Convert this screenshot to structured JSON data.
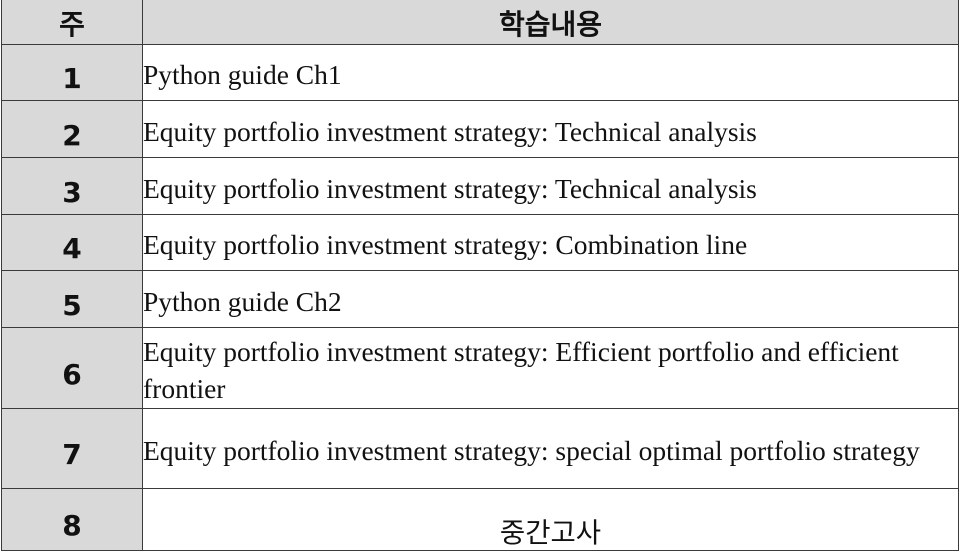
{
  "table": {
    "header": {
      "week": "주",
      "content": "학습내용"
    },
    "rows": [
      {
        "week": "1",
        "content": "Python guide Ch1"
      },
      {
        "week": "2",
        "content": "Equity portfolio investment strategy: Technical analysis"
      },
      {
        "week": "3",
        "content": "Equity portfolio investment strategy: Technical analysis"
      },
      {
        "week": "4",
        "content": "Equity portfolio investment strategy: Combination line"
      },
      {
        "week": "5",
        "content": "Python guide Ch2"
      },
      {
        "week": "6",
        "content": "Equity portfolio investment strategy: Efficient portfolio and efficient frontier"
      },
      {
        "week": "7",
        "content": "Equity portfolio investment strategy: special optimal portfolio strategy"
      },
      {
        "week": "8",
        "content": "중간고사"
      }
    ]
  },
  "colors": {
    "header_bg": "#d9d9d9",
    "week_column_bg": "#d9d9d9",
    "content_bg": "#ffffff",
    "border": "#3a3a3a"
  }
}
